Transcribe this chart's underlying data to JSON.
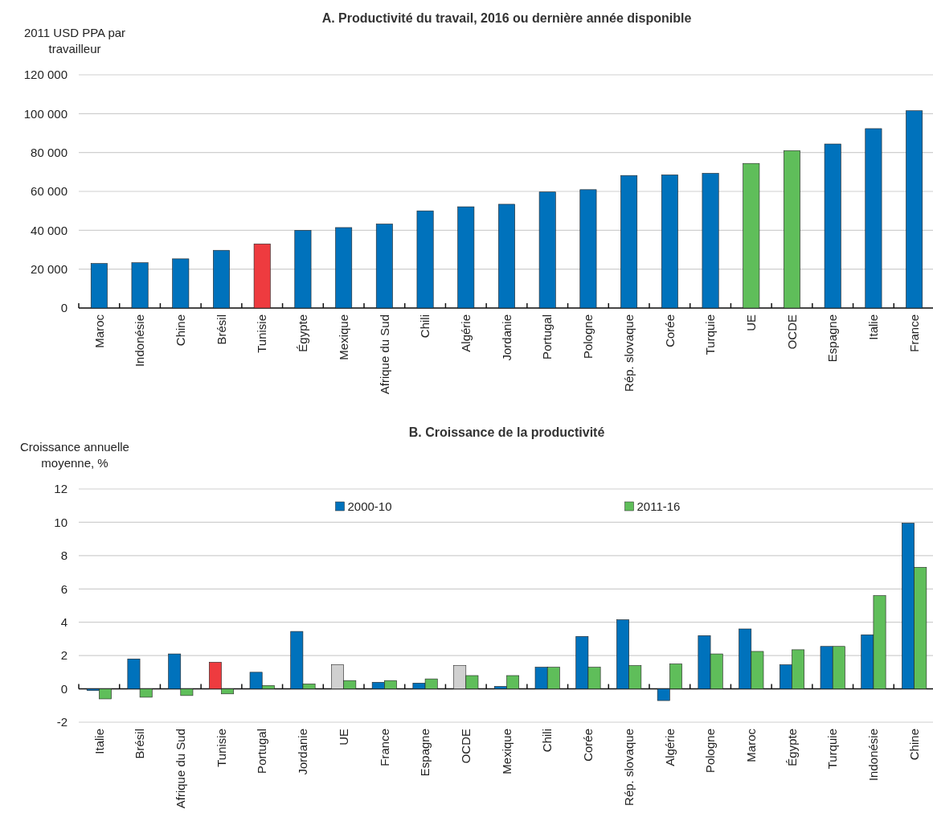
{
  "chart_data": [
    {
      "type": "bar",
      "title": "A. Productivité du travail, 2016 ou dernière année disponible",
      "ylabel": "2011 USD PPA par\ntravailleur",
      "categories": [
        "Maroc",
        "Indonésie",
        "Chine",
        "Brésil",
        "Tunisie",
        "Égypte",
        "Mexique",
        "Afrique du Sud",
        "Chili",
        "Algérie",
        "Jordanie",
        "Portugal",
        "Pologne",
        "Rép. slovaque",
        "Corée",
        "Turquie",
        "UE",
        "OCDE",
        "Espagne",
        "Italie",
        "France"
      ],
      "values": [
        22900,
        23300,
        25300,
        29700,
        33000,
        40000,
        41400,
        43200,
        50000,
        52100,
        53400,
        59700,
        60900,
        68200,
        68500,
        69300,
        74400,
        81000,
        84400,
        92300,
        101500
      ],
      "colors": [
        "#0072bc",
        "#0072bc",
        "#0072bc",
        "#0072bc",
        "#ee3b3f",
        "#0072bc",
        "#0072bc",
        "#0072bc",
        "#0072bc",
        "#0072bc",
        "#0072bc",
        "#0072bc",
        "#0072bc",
        "#0072bc",
        "#0072bc",
        "#0072bc",
        "#5fbe5a",
        "#5fbe5a",
        "#0072bc",
        "#0072bc",
        "#0072bc"
      ],
      "ylim": [
        0,
        120000
      ],
      "yticks": [
        0,
        {
          "value": 20000,
          "label": "20 000"
        },
        {
          "value": 40000,
          "label": "40 000"
        },
        {
          "value": 60000,
          "label": "60 000"
        },
        {
          "value": 80000,
          "label": "80 000"
        },
        {
          "value": 100000,
          "label": "100 000"
        },
        {
          "value": 120000,
          "label": "120 000"
        }
      ],
      "grid": "y"
    },
    {
      "type": "bar",
      "title": "B. Croissance de la productivité",
      "ylabel": "Croissance annuelle\nmoyenne, %",
      "categories": [
        "Italie",
        "Brésil",
        "Afrique du Sud",
        "Tunisie",
        "Portugal",
        "Jordanie",
        "UE",
        "France",
        "Espagne",
        "OCDE",
        "Mexique",
        "Chili",
        "Corée",
        "Rép. slovaque",
        "Algérie",
        "Pologne",
        "Maroc",
        "Égypte",
        "Turquie",
        "Indonésie",
        "Chine"
      ],
      "series": [
        {
          "name": "2000-10",
          "color": "#0072bc",
          "colors": [
            "#0072bc",
            "#0072bc",
            "#0072bc",
            "#ee3b3f",
            "#0072bc",
            "#0072bc",
            "#d0d0d0",
            "#0072bc",
            "#0072bc",
            "#d0d0d0",
            "#0072bc",
            "#0072bc",
            "#0072bc",
            "#0072bc",
            "#0072bc",
            "#0072bc",
            "#0072bc",
            "#0072bc",
            "#0072bc",
            "#0072bc",
            "#0072bc"
          ],
          "values": [
            -0.1,
            1.8,
            2.1,
            1.6,
            1.0,
            3.45,
            1.45,
            0.4,
            0.35,
            1.4,
            0.15,
            1.3,
            3.15,
            4.15,
            -0.7,
            3.2,
            3.6,
            1.45,
            2.55,
            3.25,
            9.95
          ]
        },
        {
          "name": "2011-16",
          "color": "#5fbe5a",
          "values": [
            -0.6,
            -0.5,
            -0.4,
            -0.3,
            0.2,
            0.3,
            0.5,
            0.5,
            0.6,
            0.8,
            0.8,
            1.3,
            1.3,
            1.4,
            1.5,
            2.1,
            2.25,
            2.35,
            2.55,
            5.6,
            7.3
          ]
        }
      ],
      "ylim": [
        -2,
        12
      ],
      "yticks": [
        -2,
        0,
        2,
        4,
        6,
        8,
        10,
        12
      ],
      "grid": "y",
      "legend": "top"
    }
  ]
}
